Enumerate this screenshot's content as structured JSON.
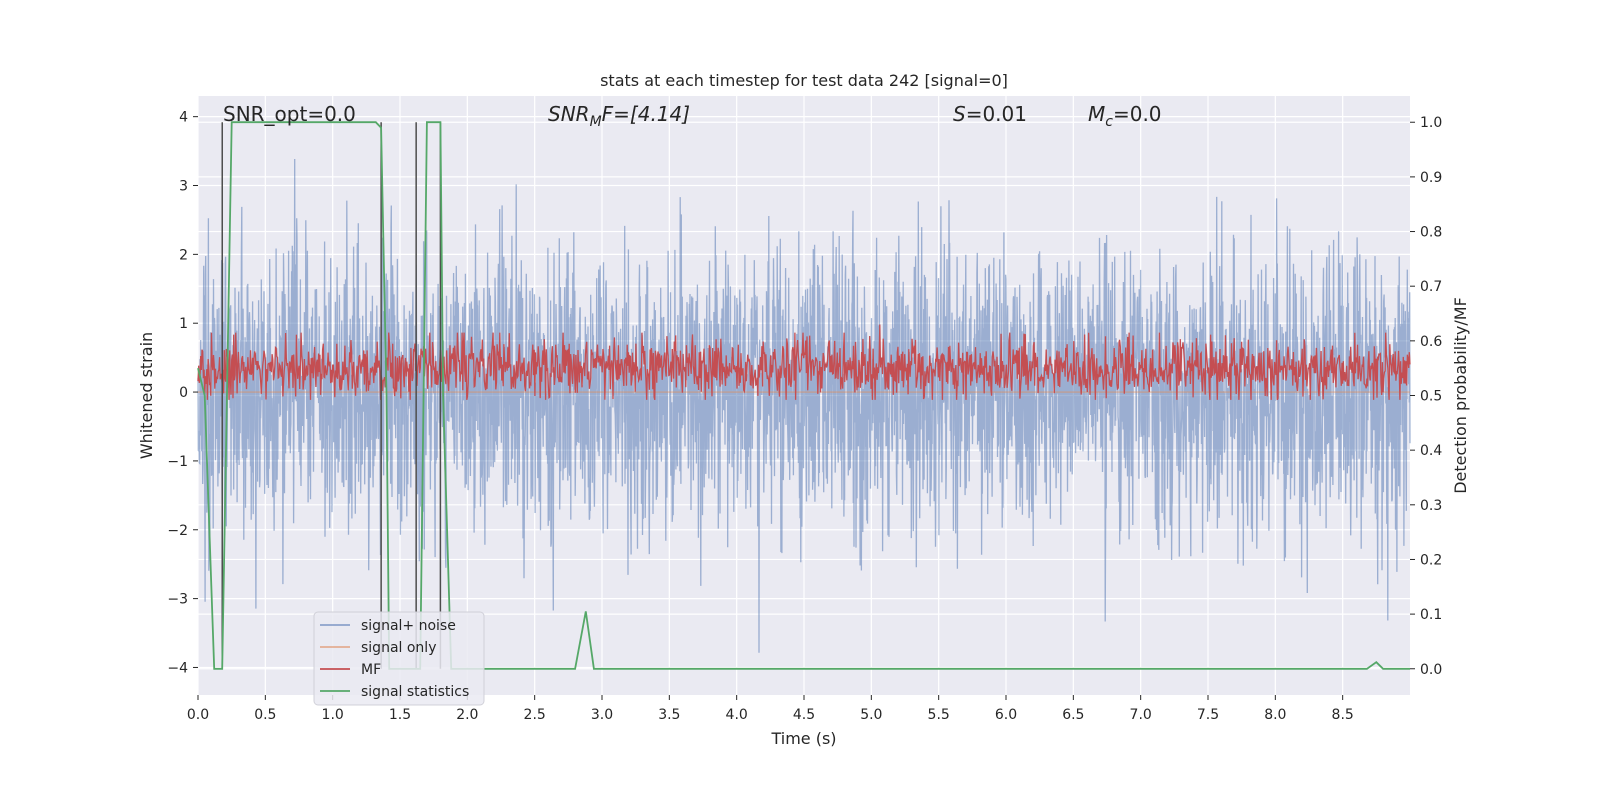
{
  "chart_data": {
    "type": "line",
    "title": "stats at each timestep for test data 242 [signal=0]",
    "xlabel": "Time (s)",
    "ylabel": "Whitened strain",
    "y2label": "Detection probability/MF",
    "xlim": [
      0,
      9.0
    ],
    "ylim": [
      -4.4,
      4.3
    ],
    "y2lim": [
      -0.048,
      1.048
    ],
    "xticks": [
      "0.0",
      "0.5",
      "1.0",
      "1.5",
      "2.0",
      "2.5",
      "3.0",
      "3.5",
      "4.0",
      "4.5",
      "5.0",
      "5.5",
      "6.0",
      "6.5",
      "7.0",
      "7.5",
      "8.0",
      "8.5"
    ],
    "yticks": [
      "−4",
      "−3",
      "−2",
      "−1",
      "0",
      "1",
      "2",
      "3",
      "4"
    ],
    "y2ticks": [
      "0.0",
      "0.1",
      "0.2",
      "0.3",
      "0.4",
      "0.5",
      "0.6",
      "0.7",
      "0.8",
      "0.9",
      "1.0"
    ],
    "grid": true,
    "legend_position": "lower-left",
    "annotations": {
      "snr_opt": "SNR_opt=0.0",
      "snr_mf_main": "SNR",
      "snr_mf_sub": "M",
      "snr_mf_rest": "F=[4.14]",
      "s_main": "S",
      "s_rest": "=0.01",
      "mc_main": "M",
      "mc_sub": "c",
      "mc_rest": "=0.0"
    },
    "series": [
      {
        "name": "signal+ noise",
        "color": "#4c72b0",
        "axis": "left",
        "kind": "noise",
        "amplitude_rms": 1.0,
        "extremes": [
          -4.2,
          3.9
        ]
      },
      {
        "name": "signal only",
        "color": "#dd8452",
        "axis": "left",
        "kind": "flat",
        "values": [
          0
        ]
      },
      {
        "name": "MF",
        "color": "#c44e52",
        "axis": "right",
        "kind": "mf",
        "range": [
          0.5,
          0.6
        ],
        "peak": 0.63
      },
      {
        "name": "signal statistics",
        "color": "#55a868",
        "axis": "right",
        "kind": "line",
        "x": [
          0.0,
          0.05,
          0.12,
          0.18,
          0.25,
          0.3,
          0.5,
          1.0,
          1.3,
          1.32,
          1.36,
          1.4,
          1.42,
          1.45,
          1.6,
          1.65,
          1.7,
          1.8,
          1.82,
          1.88,
          1.95,
          2.0,
          2.5,
          2.8,
          2.88,
          2.94,
          3.5,
          5.0,
          7.0,
          8.5,
          8.68,
          8.75,
          8.8,
          9.0
        ],
        "y": [
          0.55,
          0.5,
          0.0,
          0.0,
          1.0,
          1.0,
          1.0,
          1.0,
          1.0,
          1.0,
          0.99,
          0.5,
          0.0,
          0.0,
          0.0,
          0.0,
          1.0,
          1.0,
          0.5,
          0.0,
          0.0,
          0.0,
          0.0,
          0.0,
          0.105,
          0.0,
          0.0,
          0.0,
          0.0,
          0.0,
          0.0,
          0.012,
          0.0,
          0.0
        ]
      },
      {
        "name": "",
        "color": "#4d4d4d",
        "axis": "right",
        "kind": "vlines",
        "x": [
          0.18,
          1.36,
          1.62,
          1.8
        ],
        "ylim": [
          0.0,
          1.0
        ]
      }
    ]
  }
}
